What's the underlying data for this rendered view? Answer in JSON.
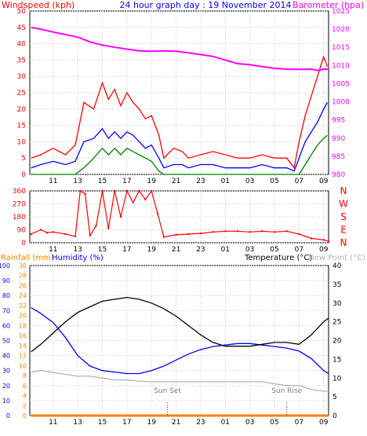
{
  "chart_data": [
    {
      "type": "line",
      "title": "24 hour graph day : 19 November 2014",
      "ylabel_left": "Windspeed (kph)",
      "ylabel_right": "Barometer (hpa)",
      "x_ticks": [
        "11",
        "13",
        "15",
        "17",
        "19",
        "21",
        "23",
        "01",
        "03",
        "05",
        "07",
        "09"
      ],
      "y_left_ticks": [
        "0",
        "5",
        "10",
        "15",
        "20",
        "25",
        "30",
        "35",
        "40",
        "45",
        "50"
      ],
      "y_right_ticks": [
        "980",
        "985",
        "990",
        "995",
        "1000",
        "1005",
        "1010",
        "1015",
        "1020",
        "1025"
      ],
      "ylim_left": [
        0,
        50
      ],
      "ylim_right": [
        980,
        1025
      ],
      "x_range_hours": [
        9.1,
        33.4
      ],
      "grid": true,
      "colors": {
        "gust": "#ff0000",
        "wind": "#0000ff",
        "average": "#008000",
        "barometer": "#ff00ff"
      },
      "series": [
        {
          "key": "barometer",
          "axis": "right",
          "points": [
            [
              9.2,
              1020.5
            ],
            [
              10,
              1020
            ],
            [
              11,
              1019.2
            ],
            [
              12,
              1018.5
            ],
            [
              13,
              1017.8
            ],
            [
              14,
              1016.5
            ],
            [
              15,
              1015.6
            ],
            [
              16,
              1015
            ],
            [
              17,
              1014.5
            ],
            [
              18,
              1014
            ],
            [
              19,
              1013.9
            ],
            [
              20,
              1014
            ],
            [
              21,
              1013.9
            ],
            [
              22,
              1013.5
            ],
            [
              23,
              1013
            ],
            [
              24,
              1012.5
            ],
            [
              25,
              1011.5
            ],
            [
              26,
              1010.5
            ],
            [
              27,
              1010.2
            ],
            [
              28,
              1009.7
            ],
            [
              29,
              1009.2
            ],
            [
              30,
              1009
            ],
            [
              31,
              1008.9
            ],
            [
              32,
              1009
            ],
            [
              32.6,
              1008.6
            ],
            [
              33,
              1009
            ],
            [
              33.4,
              1009
            ]
          ]
        },
        {
          "key": "gust",
          "axis": "left",
          "points": [
            [
              9.2,
              5
            ],
            [
              10,
              6
            ],
            [
              11,
              8
            ],
            [
              12,
              6
            ],
            [
              12.8,
              9
            ],
            [
              13.5,
              22
            ],
            [
              14.3,
              20
            ],
            [
              15,
              28
            ],
            [
              15.5,
              23
            ],
            [
              16,
              26
            ],
            [
              16.5,
              21
            ],
            [
              17,
              25
            ],
            [
              17.5,
              22
            ],
            [
              18,
              20
            ],
            [
              18.5,
              17
            ],
            [
              19,
              18
            ],
            [
              19.6,
              12
            ],
            [
              20,
              5
            ],
            [
              20.8,
              8
            ],
            [
              21.5,
              7
            ],
            [
              22,
              5
            ],
            [
              23,
              6
            ],
            [
              24,
              7
            ],
            [
              25,
              6
            ],
            [
              26,
              5
            ],
            [
              27,
              5
            ],
            [
              28,
              6
            ],
            [
              29,
              5
            ],
            [
              30,
              5
            ],
            [
              30.6,
              2
            ],
            [
              31,
              10
            ],
            [
              31.5,
              18
            ],
            [
              32,
              24
            ],
            [
              32.5,
              30
            ],
            [
              33,
              36
            ],
            [
              33.3,
              33
            ]
          ]
        },
        {
          "key": "wind",
          "axis": "left",
          "points": [
            [
              9.2,
              2
            ],
            [
              10,
              3
            ],
            [
              11,
              4
            ],
            [
              12,
              3
            ],
            [
              12.8,
              4
            ],
            [
              13.5,
              10
            ],
            [
              14.3,
              11
            ],
            [
              15,
              14
            ],
            [
              15.5,
              11
            ],
            [
              16,
              13
            ],
            [
              16.5,
              11
            ],
            [
              17,
              13
            ],
            [
              17.5,
              12
            ],
            [
              18,
              10
            ],
            [
              18.5,
              8
            ],
            [
              19,
              9
            ],
            [
              19.6,
              5
            ],
            [
              20,
              2
            ],
            [
              20.8,
              3
            ],
            [
              21.5,
              3
            ],
            [
              22,
              2
            ],
            [
              23,
              3
            ],
            [
              24,
              3
            ],
            [
              25,
              2
            ],
            [
              26,
              2
            ],
            [
              27,
              2
            ],
            [
              28,
              3
            ],
            [
              29,
              2
            ],
            [
              30,
              2
            ],
            [
              30.6,
              1
            ],
            [
              31,
              5
            ],
            [
              31.5,
              10
            ],
            [
              32,
              13
            ],
            [
              32.5,
              16
            ],
            [
              33,
              20
            ],
            [
              33.3,
              22
            ]
          ]
        },
        {
          "key": "average",
          "axis": "left",
          "points": [
            [
              9.2,
              0
            ],
            [
              12.8,
              0
            ],
            [
              13.5,
              2
            ],
            [
              14.3,
              5
            ],
            [
              15,
              8
            ],
            [
              15.5,
              6
            ],
            [
              16,
              8
            ],
            [
              16.5,
              6
            ],
            [
              17,
              8
            ],
            [
              17.5,
              7
            ],
            [
              18,
              6
            ],
            [
              18.5,
              5
            ],
            [
              19,
              4
            ],
            [
              19.6,
              1
            ],
            [
              20,
              0
            ],
            [
              31,
              0
            ],
            [
              31.5,
              3
            ],
            [
              32,
              6
            ],
            [
              32.5,
              9
            ],
            [
              33,
              11
            ],
            [
              33.3,
              12
            ]
          ]
        }
      ]
    },
    {
      "type": "scatter",
      "ylabel_right": "N W S E N",
      "compass_letters": [
        "N",
        "W",
        "S",
        "E",
        "N"
      ],
      "y_ticks": [
        "0",
        "90",
        "180",
        "270",
        "360"
      ],
      "ylim": [
        0,
        360
      ],
      "x_ticks": [
        "11",
        "13",
        "15",
        "17",
        "19",
        "21",
        "23",
        "01",
        "03",
        "05",
        "07",
        "09"
      ],
      "color": "#ff0000",
      "points": [
        [
          9.2,
          60
        ],
        [
          10,
          90
        ],
        [
          10.5,
          70
        ],
        [
          11,
          75
        ],
        [
          12,
          60
        ],
        [
          12.8,
          45
        ],
        [
          13.2,
          360
        ],
        [
          13.6,
          340
        ],
        [
          14,
          50
        ],
        [
          14.5,
          120
        ],
        [
          15,
          360
        ],
        [
          15.5,
          100
        ],
        [
          16,
          360
        ],
        [
          16.5,
          180
        ],
        [
          17,
          360
        ],
        [
          17.5,
          280
        ],
        [
          18,
          360
        ],
        [
          18.5,
          300
        ],
        [
          19,
          360
        ],
        [
          19.5,
          200
        ],
        [
          20,
          40
        ],
        [
          21,
          55
        ],
        [
          22,
          60
        ],
        [
          23,
          65
        ],
        [
          24,
          75
        ],
        [
          25,
          80
        ],
        [
          26,
          80
        ],
        [
          27,
          75
        ],
        [
          28,
          80
        ],
        [
          29,
          75
        ],
        [
          30,
          80
        ],
        [
          31,
          60
        ],
        [
          32,
          30
        ],
        [
          33,
          20
        ],
        [
          33.4,
          10
        ]
      ]
    },
    {
      "type": "line",
      "ylabel_left_1": "Rainfall (mm)",
      "ylabel_left_2": "Humidity (%)",
      "ylabel_right_1": "Temperature (°C)",
      "ylabel_right_2": "Dew Point (°C)",
      "humidity_ticks": [
        "0",
        "10",
        "20",
        "30",
        "40",
        "50",
        "60",
        "70",
        "80",
        "90",
        "100"
      ],
      "rain_ticks": [
        "0",
        "2",
        "4",
        "6",
        "8",
        "10",
        "12",
        "14",
        "16",
        "18",
        "20",
        "22",
        "24",
        "26",
        "28",
        "30"
      ],
      "temp_ticks": [
        "0",
        "5",
        "10",
        "15",
        "20",
        "25",
        "30",
        "35",
        "40"
      ],
      "ylim_humidity": [
        0,
        100
      ],
      "ylim_rain": [
        0,
        30
      ],
      "ylim_temp": [
        0,
        40
      ],
      "x_ticks": [
        "11",
        "13",
        "15",
        "17",
        "19",
        "21",
        "23",
        "01",
        "03",
        "05",
        "07",
        "09"
      ],
      "annotations": [
        {
          "text": "Sun Set",
          "x_hour": 20.3
        },
        {
          "text": "Sun Rise",
          "x_hour": 30.0
        }
      ],
      "colors": {
        "temperature": "#000000",
        "humidity": "#0000ff",
        "dew_point": "#b4b4b4",
        "rainfall": "#ff8000"
      },
      "series": [
        {
          "key": "temperature",
          "axis": "temp",
          "points": [
            [
              9.2,
              17
            ],
            [
              10,
              19
            ],
            [
              11,
              22
            ],
            [
              12,
              25
            ],
            [
              13,
              27.5
            ],
            [
              14,
              29
            ],
            [
              15,
              30.5
            ],
            [
              16,
              31
            ],
            [
              17,
              31.5
            ],
            [
              18,
              31
            ],
            [
              19,
              30
            ],
            [
              20,
              28.5
            ],
            [
              21,
              26.5
            ],
            [
              22,
              24
            ],
            [
              23,
              21.5
            ],
            [
              24,
              19.5
            ],
            [
              25,
              18.5
            ],
            [
              26,
              18.5
            ],
            [
              27,
              18.5
            ],
            [
              28,
              19
            ],
            [
              29,
              19.5
            ],
            [
              30,
              19.5
            ],
            [
              31,
              19
            ],
            [
              32,
              21.5
            ],
            [
              33,
              25
            ],
            [
              33.4,
              26
            ]
          ]
        },
        {
          "key": "humidity",
          "axis": "humidity",
          "points": [
            [
              9.2,
              72
            ],
            [
              10,
              68
            ],
            [
              11,
              62
            ],
            [
              12,
              52
            ],
            [
              13,
              40
            ],
            [
              14,
              33
            ],
            [
              15,
              30
            ],
            [
              16,
              29
            ],
            [
              17,
              28
            ],
            [
              18,
              28
            ],
            [
              19,
              30
            ],
            [
              20,
              33
            ],
            [
              21,
              37
            ],
            [
              22,
              41
            ],
            [
              23,
              44
            ],
            [
              24,
              46
            ],
            [
              25,
              47
            ],
            [
              26,
              48
            ],
            [
              27,
              48
            ],
            [
              28,
              47
            ],
            [
              29,
              46
            ],
            [
              30,
              45
            ],
            [
              31,
              43
            ],
            [
              32,
              38
            ],
            [
              33,
              30
            ],
            [
              33.4,
              28
            ]
          ]
        },
        {
          "key": "dew_point",
          "axis": "temp",
          "points": [
            [
              9.2,
              11.5
            ],
            [
              10,
              12
            ],
            [
              11,
              11.5
            ],
            [
              12,
              11
            ],
            [
              13,
              10.5
            ],
            [
              14,
              10.5
            ],
            [
              15,
              10
            ],
            [
              16,
              9.5
            ],
            [
              17,
              9.5
            ],
            [
              18,
              9.2
            ],
            [
              19,
              9
            ],
            [
              20,
              9
            ],
            [
              21,
              9
            ],
            [
              22,
              9
            ],
            [
              23,
              9
            ],
            [
              24,
              9
            ],
            [
              25,
              9
            ],
            [
              26,
              9
            ],
            [
              27,
              9
            ],
            [
              28,
              9
            ],
            [
              29,
              8.5
            ],
            [
              30,
              8
            ],
            [
              31,
              8
            ],
            [
              32,
              7
            ],
            [
              33,
              6.5
            ],
            [
              33.4,
              6.5
            ]
          ]
        },
        {
          "key": "rainfall",
          "axis": "rain",
          "points": [
            [
              9.2,
              0
            ],
            [
              33.4,
              0
            ]
          ]
        }
      ]
    }
  ]
}
